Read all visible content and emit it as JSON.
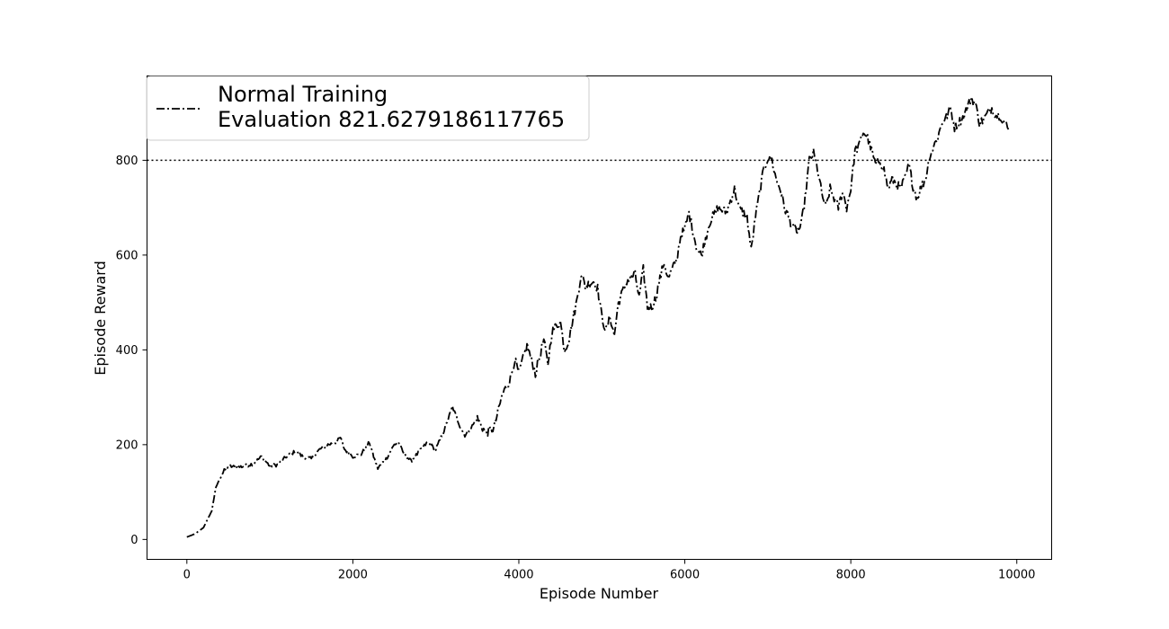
{
  "chart_data": {
    "type": "line",
    "xlabel": "Episode Number",
    "ylabel": "Episode Reward",
    "xlim": [
      -480,
      10420
    ],
    "ylim": [
      -42,
      978
    ],
    "xticks": [
      0,
      2000,
      4000,
      6000,
      8000,
      10000
    ],
    "yticks": [
      0,
      200,
      400,
      600,
      800
    ],
    "xtick_labels": [
      "0",
      "2000",
      "4000",
      "6000",
      "8000",
      "10000"
    ],
    "ytick_labels": [
      "0",
      "200",
      "400",
      "600",
      "800"
    ],
    "grid": false,
    "legend": {
      "placement": "top-left",
      "entries": [
        "Normal Training",
        "Evaluation 821.6279186117765"
      ]
    },
    "reference_line": {
      "y": 800,
      "style": "dotted"
    },
    "series": [
      {
        "name": "Normal Training",
        "style": "dashdot",
        "color": "#000000",
        "x": [
          0,
          100,
          200,
          300,
          350,
          400,
          450,
          500,
          600,
          700,
          800,
          900,
          950,
          1000,
          1100,
          1200,
          1300,
          1400,
          1500,
          1600,
          1700,
          1800,
          1850,
          1900,
          2000,
          2100,
          2200,
          2250,
          2300,
          2400,
          2500,
          2550,
          2600,
          2700,
          2800,
          2900,
          3000,
          3100,
          3200,
          3300,
          3350,
          3400,
          3500,
          3600,
          3700,
          3800,
          3900,
          3950,
          4000,
          4100,
          4200,
          4300,
          4350,
          4400,
          4500,
          4550,
          4600,
          4700,
          4750,
          4800,
          4900,
          4950,
          5000,
          5050,
          5100,
          5150,
          5200,
          5300,
          5400,
          5450,
          5500,
          5550,
          5600,
          5650,
          5700,
          5750,
          5800,
          5900,
          5950,
          6000,
          6050,
          6100,
          6150,
          6200,
          6250,
          6300,
          6400,
          6500,
          6600,
          6650,
          6700,
          6750,
          6800,
          6850,
          6900,
          6950,
          7000,
          7050,
          7100,
          7150,
          7200,
          7300,
          7350,
          7400,
          7450,
          7500,
          7550,
          7600,
          7650,
          7700,
          7750,
          7800,
          7850,
          7900,
          7950,
          8000,
          8050,
          8100,
          8150,
          8200,
          8250,
          8300,
          8350,
          8400,
          8450,
          8500,
          8550,
          8600,
          8650,
          8700,
          8750,
          8800,
          8850,
          8900,
          8950,
          9000,
          9050,
          9100,
          9150,
          9200,
          9250,
          9300,
          9350,
          9400,
          9450,
          9500,
          9550,
          9600,
          9650,
          9700,
          9750,
          9800,
          9850,
          9900
        ],
        "y": [
          5,
          12,
          25,
          60,
          110,
          130,
          145,
          155,
          152,
          155,
          160,
          175,
          165,
          155,
          158,
          175,
          185,
          175,
          170,
          190,
          200,
          205,
          215,
          190,
          175,
          180,
          205,
          175,
          150,
          170,
          200,
          205,
          185,
          165,
          185,
          205,
          190,
          230,
          280,
          235,
          220,
          230,
          255,
          225,
          235,
          305,
          340,
          380,
          350,
          410,
          350,
          420,
          370,
          440,
          460,
          400,
          420,
          505,
          560,
          535,
          545,
          530,
          470,
          440,
          470,
          430,
          500,
          545,
          560,
          510,
          570,
          490,
          490,
          510,
          550,
          585,
          550,
          590,
          640,
          655,
          690,
          650,
          610,
          600,
          635,
          670,
          700,
          690,
          740,
          700,
          690,
          680,
          610,
          680,
          730,
          780,
          805,
          800,
          760,
          740,
          700,
          660,
          650,
          660,
          720,
          800,
          815,
          780,
          730,
          700,
          740,
          720,
          700,
          735,
          700,
          740,
          820,
          830,
          860,
          850,
          820,
          790,
          800,
          780,
          740,
          760,
          750,
          740,
          760,
          790,
          745,
          720,
          745,
          760,
          810,
          830,
          850,
          880,
          890,
          910,
          870,
          880,
          890,
          910,
          930,
          920,
          880,
          885,
          900,
          910,
          895,
          895,
          880,
          865
        ]
      }
    ]
  }
}
